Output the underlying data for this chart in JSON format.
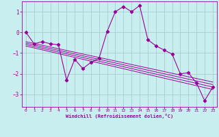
{
  "xlabel": "Windchill (Refroidissement éolien,°C)",
  "bg_color": "#c8eef0",
  "line_color": "#990099",
  "grid_color": "#aacccc",
  "xlim": [
    -0.5,
    23.5
  ],
  "ylim": [
    -3.6,
    1.5
  ],
  "xticks": [
    0,
    1,
    2,
    3,
    4,
    5,
    6,
    7,
    8,
    9,
    10,
    11,
    12,
    13,
    14,
    15,
    16,
    17,
    18,
    19,
    20,
    21,
    22,
    23
  ],
  "yticks": [
    -3,
    -2,
    -1,
    0,
    1
  ],
  "main_x": [
    0,
    1,
    2,
    3,
    4,
    5,
    6,
    7,
    8,
    9,
    10,
    11,
    12,
    13,
    14,
    15,
    16,
    17,
    18,
    19,
    20,
    21,
    22,
    23
  ],
  "main_y": [
    0.0,
    -0.55,
    -0.45,
    -0.55,
    -0.6,
    -2.3,
    -1.3,
    -1.75,
    -1.45,
    -1.25,
    0.05,
    1.0,
    1.25,
    1.0,
    1.3,
    -0.35,
    -0.65,
    -0.85,
    -1.05,
    -2.0,
    -1.95,
    -2.45,
    -3.3,
    -2.65
  ],
  "reg_lines": [
    {
      "x0": 0,
      "y0": -0.45,
      "x1": 23,
      "y1": -2.4
    },
    {
      "x0": 0,
      "y0": -0.52,
      "x1": 23,
      "y1": -2.52
    },
    {
      "x0": 0,
      "y0": -0.59,
      "x1": 23,
      "y1": -2.64
    },
    {
      "x0": 0,
      "y0": -0.66,
      "x1": 23,
      "y1": -2.76
    }
  ]
}
